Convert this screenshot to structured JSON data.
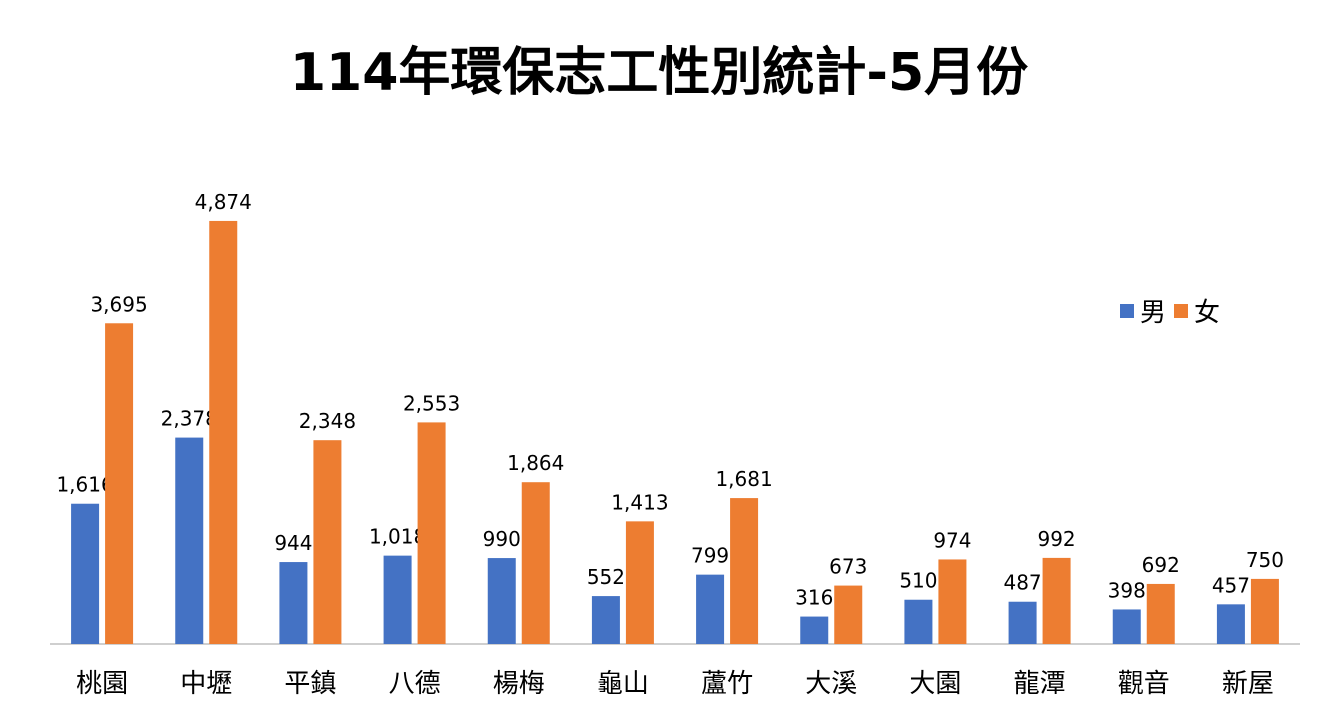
{
  "chart_data": {
    "type": "bar",
    "title": "114年環保志工性別統計-5月份",
    "xlabel": "",
    "ylabel": "",
    "ylim": [
      0,
      5200
    ],
    "categories": [
      "桃園",
      "中壢",
      "平鎮",
      "八德",
      "楊梅",
      "龜山",
      "蘆竹",
      "大溪",
      "大園",
      "龍潭",
      "觀音",
      "新屋"
    ],
    "series": [
      {
        "name": "男",
        "color": "#4472C4",
        "values": [
          1616,
          2378,
          944,
          1018,
          990,
          552,
          799,
          316,
          510,
          487,
          398,
          457
        ],
        "labels": [
          "1,616",
          "2,378",
          "944",
          "1,018",
          "990",
          "552",
          "799",
          "316",
          "510",
          "487",
          "398",
          "457"
        ]
      },
      {
        "name": "女",
        "color": "#ED7D31",
        "values": [
          3695,
          4874,
          2348,
          2553,
          1864,
          1413,
          1681,
          673,
          974,
          992,
          692,
          750
        ],
        "labels": [
          "3,695",
          "4,874",
          "2,348",
          "2,553",
          "1,864",
          "1,413",
          "1,681",
          "673",
          "974",
          "992",
          "692",
          "750"
        ]
      }
    ],
    "legend": {
      "position": "top-right"
    },
    "grid": false
  }
}
